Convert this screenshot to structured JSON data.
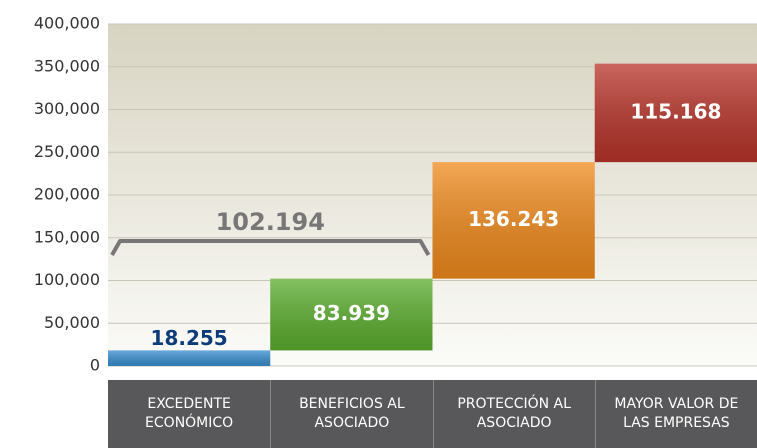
{
  "chart_data": {
    "type": "waterfall",
    "categories": [
      "EXCEDENTE ECONÓMICO",
      "BENEFICIOS AL ASOCIADO",
      "PROTECCIÓN AL ASOCIADO",
      "MAYOR VALOR DE LAS EMPRESAS"
    ],
    "values": [
      18255,
      83939,
      136243,
      115168
    ],
    "value_labels": [
      "18.255",
      "83.939",
      "136.243",
      "115.168"
    ],
    "colors": [
      "#3a8fd0",
      "#5cae2e",
      "#f08a1c",
      "#b8342a"
    ],
    "ylim": [
      0,
      400000
    ],
    "yticks": [
      0,
      {
        "value": 50000,
        "label": "50,000"
      },
      {
        "value": 100000,
        "label": "100,000"
      },
      {
        "value": 150000,
        "label": "150,000"
      },
      {
        "value": 200000,
        "label": "200,000"
      },
      {
        "value": 250000,
        "label": "250,000"
      },
      {
        "value": 300000,
        "label": "300,000"
      },
      {
        "value": 350000,
        "label": "350,000"
      },
      {
        "value": 400000,
        "label": "400,000"
      }
    ],
    "grid": true,
    "bracket": {
      "value": 102194,
      "label": "102.194"
    }
  }
}
